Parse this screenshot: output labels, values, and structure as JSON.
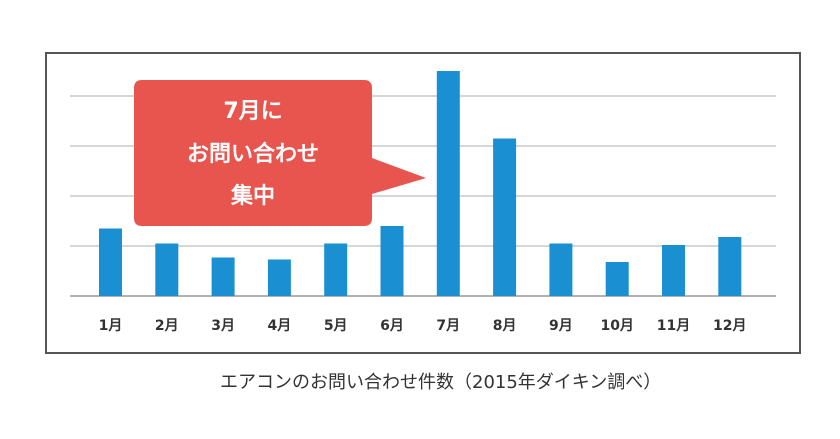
{
  "chart_data": {
    "type": "bar",
    "categories": [
      "1月",
      "2月",
      "3月",
      "4月",
      "5月",
      "6月",
      "7月",
      "8月",
      "9月",
      "10月",
      "11月",
      "12月"
    ],
    "values": [
      13.5,
      10.5,
      7.7,
      7.3,
      10.5,
      14.0,
      45.0,
      31.5,
      10.5,
      6.8,
      10.2,
      11.8
    ],
    "ylim": [
      0,
      50
    ],
    "grid": true,
    "title": "",
    "xlabel": "",
    "ylabel": "",
    "bar_color": "#1a8fd1",
    "grid_color": "#c8c8c8",
    "frame_color": "#555555"
  },
  "callout": {
    "lines": [
      "7月に",
      "お問い合わせ",
      "集中"
    ],
    "color": "#e8554e"
  },
  "caption": "エアコンのお問い合わせ件数（2015年ダイキン調べ）"
}
